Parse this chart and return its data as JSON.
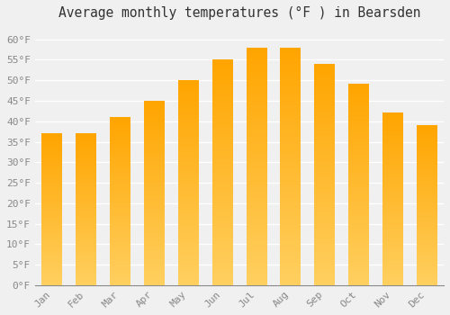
{
  "title": "Average monthly temperatures (°F ) in Bearsden",
  "months": [
    "Jan",
    "Feb",
    "Mar",
    "Apr",
    "May",
    "Jun",
    "Jul",
    "Aug",
    "Sep",
    "Oct",
    "Nov",
    "Dec"
  ],
  "values": [
    37,
    37,
    41,
    45,
    50,
    55,
    58,
    58,
    54,
    49,
    42,
    39
  ],
  "bar_color_top": "#FFA500",
  "bar_color_bottom": "#FFD060",
  "background_color": "#F0F0F0",
  "grid_color": "#FFFFFF",
  "ylim": [
    0,
    63
  ],
  "yticks": [
    0,
    5,
    10,
    15,
    20,
    25,
    30,
    35,
    40,
    45,
    50,
    55,
    60
  ],
  "ylabel_suffix": "°F",
  "title_fontsize": 10.5,
  "tick_fontsize": 8,
  "bar_width": 0.6,
  "figsize": [
    5.0,
    3.5
  ],
  "dpi": 100
}
